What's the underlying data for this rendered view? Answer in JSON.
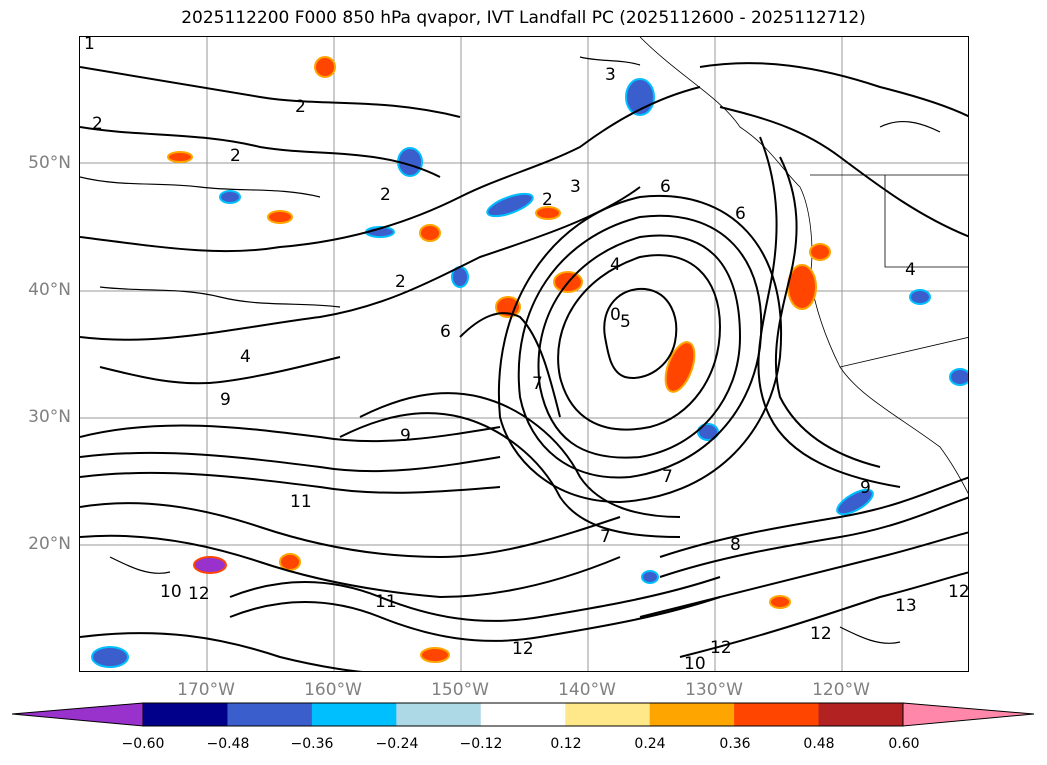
{
  "title": "2025112200 F000 850 hPa qvapor, IVT Landfall PC (2025112600 - 2025112712)",
  "map": {
    "lat_ticks": [
      "50°N",
      "40°N",
      "30°N",
      "20°N"
    ],
    "lon_ticks": [
      "170°W",
      "160°W",
      "150°W",
      "140°W",
      "130°W",
      "120°W"
    ],
    "contour_labels": [
      "1",
      "2",
      "2",
      "2",
      "3",
      "3",
      "2",
      "2",
      "4",
      "5",
      "6",
      "2",
      "6",
      "6",
      "4",
      "0",
      "7",
      "7",
      "9",
      "9",
      "11",
      "12",
      "10",
      "12",
      "12",
      "13",
      "12",
      "12",
      "10",
      "8",
      "4",
      "7",
      "9",
      "11"
    ]
  },
  "colorbar": {
    "ticks": [
      "−0.60",
      "−0.48",
      "−0.36",
      "−0.24",
      "−0.12",
      "0.12",
      "0.24",
      "0.36",
      "0.48",
      "0.60"
    ],
    "colors": [
      "#9932cc",
      "#00008b",
      "#3a5fcd",
      "#00bfff",
      "#add8e6",
      "#ffffff",
      "#ffe88a",
      "#ffa500",
      "#ff4500",
      "#b22222",
      "#ff88aa"
    ]
  }
}
